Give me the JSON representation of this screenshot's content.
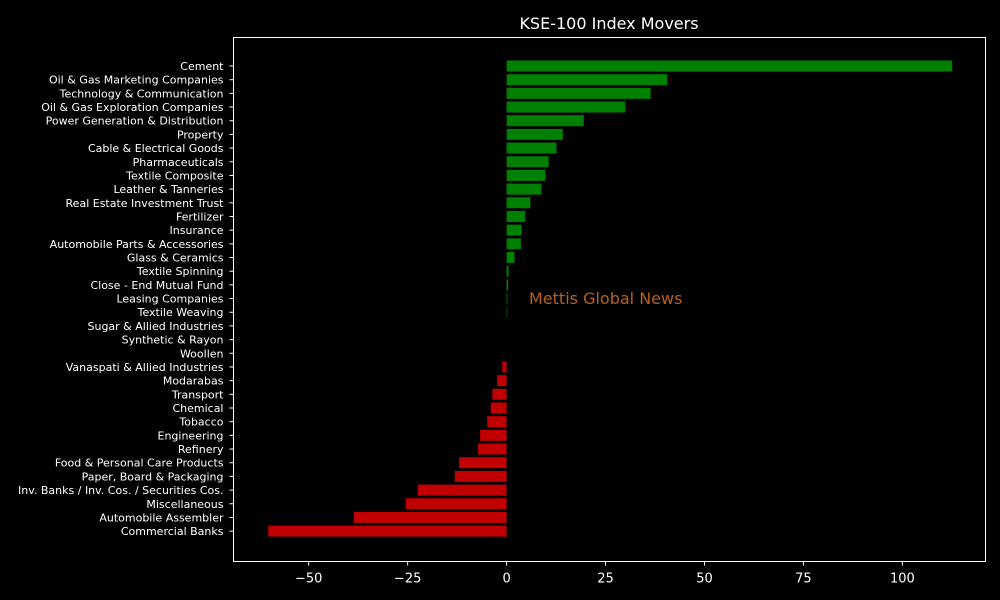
{
  "chart_data": {
    "type": "bar",
    "orientation": "horizontal",
    "title": "KSE-100 Index Movers",
    "xlabel": "",
    "ylabel": "",
    "xlim": [
      -69,
      121
    ],
    "xticks": [
      -50,
      -25,
      0,
      25,
      50,
      75,
      100
    ],
    "xtick_labels": [
      "−50",
      "−25",
      "0",
      "25",
      "50",
      "75",
      "100"
    ],
    "grid": false,
    "categories": [
      "Cement",
      "Oil & Gas Marketing Companies",
      "Technology & Communication",
      "Oil & Gas Exploration Companies",
      "Power Generation & Distribution",
      "Property",
      "Cable & Electrical Goods",
      "Pharmaceuticals",
      "Textile Composite",
      "Leather & Tanneries",
      "Real Estate Investment Trust",
      "Fertilizer",
      "Insurance",
      "Automobile Parts & Accessories",
      "Glass & Ceramics",
      "Textile Spinning",
      "Close - End Mutual Fund",
      "Leasing Companies",
      "Textile Weaving",
      "Sugar & Allied Industries",
      "Synthetic & Rayon",
      "Woollen",
      "Vanaspati & Allied Industries",
      "Modarabas",
      "Transport",
      "Chemical",
      "Tobacco",
      "Engineering",
      "Refinery",
      "Food & Personal Care Products",
      "Paper, Board & Packaging",
      "Inv. Banks / Inv. Cos. / Securities Cos.",
      "Miscellaneous",
      "Automobile Assembler",
      "Commercial Banks"
    ],
    "values": [
      112.6,
      40.6,
      36.4,
      30.0,
      19.5,
      14.2,
      12.6,
      10.6,
      9.8,
      8.8,
      6.0,
      4.7,
      3.8,
      3.6,
      2.0,
      0.5,
      0.4,
      0.2,
      0.15,
      0.0,
      0.0,
      0.0,
      -1.1,
      -2.4,
      -3.6,
      -4.0,
      -4.9,
      -6.7,
      -7.2,
      -12.0,
      -13.1,
      -22.4,
      -25.5,
      -38.6,
      -60.2
    ],
    "positive_color": "#008000",
    "negative_color": "#c00000",
    "watermark": {
      "text": "Mettis Global News",
      "color": "#b8601e"
    }
  }
}
